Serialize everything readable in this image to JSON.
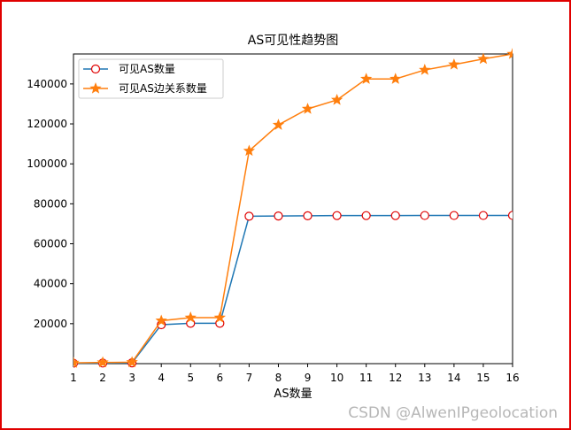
{
  "chart_data": {
    "type": "line",
    "title": "AS可见性趋势图",
    "xlabel": "AS数量",
    "ylabel": "",
    "xlim": [
      1,
      16
    ],
    "ylim": [
      0,
      155000
    ],
    "x": [
      1,
      2,
      3,
      4,
      5,
      6,
      7,
      8,
      9,
      10,
      11,
      12,
      13,
      14,
      15,
      16
    ],
    "x_ticks": [
      "1",
      "2",
      "3",
      "4",
      "5",
      "6",
      "7",
      "8",
      "9",
      "10",
      "11",
      "12",
      "13",
      "14",
      "15",
      "16"
    ],
    "y_ticks": [
      20000,
      40000,
      60000,
      80000,
      100000,
      120000,
      140000
    ],
    "y_tick_labels": [
      "20000",
      "40000",
      "60000",
      "80000",
      "100000",
      "120000",
      "140000"
    ],
    "legend_position": "upper-left",
    "series": [
      {
        "name": "可见AS数量",
        "color": "#1f77b4",
        "marker": "circle",
        "marker_face": "#ffffff",
        "marker_edge": "#e00000",
        "values": [
          200,
          300,
          400,
          19500,
          20200,
          20200,
          73800,
          73900,
          74000,
          74100,
          74100,
          74100,
          74150,
          74150,
          74150,
          74200
        ]
      },
      {
        "name": "可见AS边关系数量",
        "color": "#ff7f0e",
        "marker": "star",
        "values": [
          400,
          600,
          700,
          21500,
          23000,
          23000,
          106500,
          119500,
          127500,
          132000,
          142500,
          142500,
          147000,
          149700,
          152500,
          155000
        ]
      }
    ]
  },
  "watermark": "CSDN @AlwenIPgeolocation",
  "colors": {
    "border": "#e00000",
    "axis": "#000000"
  }
}
